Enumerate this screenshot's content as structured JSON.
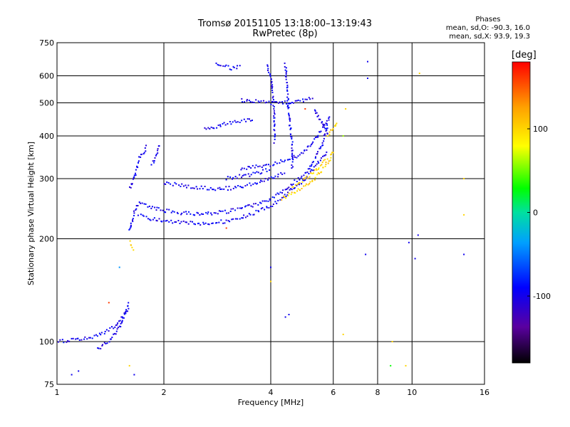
{
  "header": {
    "title_line1": "Tromsø 20151105 13:18:00–13:19:43",
    "title_line2": "RwPretec (8p)"
  },
  "phase_stats": {
    "label": "Phases",
    "line_o": "mean, sd,O: -90.3, 16.0",
    "line_x": "mean, sd,X:  93.9, 19.3"
  },
  "colorbar": {
    "unit": "[deg]",
    "ticks": [
      {
        "value": 100,
        "label": "100"
      },
      {
        "value": 0,
        "label": "0"
      },
      {
        "value": -100,
        "label": "-100"
      }
    ],
    "range": [
      -180,
      180
    ]
  },
  "chart_data": {
    "type": "scatter",
    "xlabel": "Frequency [MHz]",
    "ylabel": "Stationary phase Virtual Height [km]",
    "xscale": "log",
    "yscale": "log",
    "xlim": [
      1,
      16
    ],
    "ylim": [
      75,
      750
    ],
    "grid": true,
    "x_ticks": [
      {
        "value": 1,
        "label": "1"
      },
      {
        "value": 2,
        "label": "2"
      },
      {
        "value": 4,
        "label": "4"
      },
      {
        "value": 6,
        "label": "6"
      },
      {
        "value": 8,
        "label": "8"
      },
      {
        "value": 10,
        "label": "10"
      },
      {
        "value": 16,
        "label": "16"
      }
    ],
    "y_ticks": [
      {
        "value": 75,
        "label": "75"
      },
      {
        "value": 100,
        "label": "100"
      },
      {
        "value": 200,
        "label": "200"
      },
      {
        "value": 300,
        "label": "300"
      },
      {
        "value": 400,
        "label": "400"
      },
      {
        "value": 500,
        "label": "500"
      },
      {
        "value": 600,
        "label": "600"
      },
      {
        "value": 750,
        "label": "750"
      }
    ],
    "traces": [
      {
        "name": "",
        "phase": -100,
        "points": [
          [
            1.6,
            210
          ],
          [
            1.65,
            240
          ],
          [
            1.7,
            255
          ],
          [
            1.8,
            250
          ],
          [
            1.9,
            245
          ],
          [
            2.0,
            242
          ],
          [
            2.2,
            238
          ],
          [
            2.5,
            237
          ],
          [
            2.8,
            238
          ],
          [
            3.0,
            240
          ],
          [
            3.3,
            245
          ],
          [
            3.6,
            252
          ],
          [
            4.0,
            262
          ],
          [
            4.3,
            275
          ],
          [
            4.6,
            290
          ],
          [
            5.0,
            310
          ],
          [
            5.3,
            340
          ],
          [
            5.6,
            380
          ],
          [
            5.8,
            430
          ]
        ]
      },
      {
        "name": "",
        "phase": -100,
        "points": [
          [
            1.7,
            235
          ],
          [
            1.8,
            230
          ],
          [
            1.9,
            228
          ],
          [
            2.0,
            226
          ],
          [
            2.3,
            223
          ],
          [
            2.6,
            222
          ],
          [
            3.0,
            225
          ],
          [
            3.3,
            230
          ],
          [
            3.6,
            238
          ],
          [
            4.0,
            250
          ],
          [
            4.3,
            262
          ],
          [
            4.6,
            280
          ],
          [
            5.0,
            300
          ],
          [
            5.4,
            330
          ],
          [
            5.8,
            360
          ]
        ]
      },
      {
        "name": "",
        "phase": -100,
        "points": [
          [
            1.6,
            280
          ],
          [
            1.65,
            300
          ],
          [
            1.7,
            340
          ],
          [
            1.8,
            375
          ]
        ]
      },
      {
        "name": "",
        "phase": -100,
        "points": [
          [
            1.85,
            330
          ],
          [
            1.9,
            350
          ],
          [
            1.95,
            380
          ]
        ]
      },
      {
        "name": "",
        "phase": -100,
        "points": [
          [
            2.0,
            292
          ],
          [
            2.3,
            285
          ],
          [
            2.8,
            280
          ],
          [
            3.2,
            282
          ],
          [
            3.6,
            290
          ],
          [
            4.0,
            300
          ],
          [
            4.4,
            315
          ]
        ]
      },
      {
        "name": "",
        "phase": -100,
        "points": [
          [
            3.3,
            320
          ],
          [
            3.6,
            325
          ],
          [
            4.0,
            330
          ],
          [
            4.4,
            340
          ],
          [
            4.8,
            350
          ],
          [
            5.2,
            380
          ],
          [
            5.6,
            420
          ],
          [
            5.9,
            460
          ]
        ]
      },
      {
        "name": "",
        "phase": -100,
        "points": [
          [
            3.0,
            300
          ],
          [
            3.3,
            305
          ],
          [
            3.6,
            310
          ],
          [
            4.0,
            320
          ]
        ]
      },
      {
        "name": "",
        "phase": -100,
        "points": [
          [
            3.3,
            510
          ],
          [
            3.6,
            505
          ],
          [
            4.0,
            500
          ],
          [
            4.3,
            500
          ],
          [
            4.8,
            505
          ],
          [
            5.3,
            520
          ]
        ]
      },
      {
        "name": "",
        "phase": -100,
        "points": [
          [
            2.6,
            420
          ],
          [
            2.9,
            430
          ],
          [
            3.2,
            440
          ],
          [
            3.6,
            450
          ]
        ]
      },
      {
        "name": "",
        "phase": -100,
        "points": [
          [
            2.8,
            650
          ],
          [
            3.0,
            640
          ],
          [
            3.1,
            630
          ],
          [
            3.3,
            640
          ]
        ]
      },
      {
        "name": "",
        "phase": -100,
        "points": [
          [
            3.9,
            650
          ],
          [
            4.0,
            600
          ],
          [
            4.05,
            520
          ],
          [
            4.1,
            450
          ],
          [
            4.1,
            380
          ]
        ]
      },
      {
        "name": "",
        "phase": -100,
        "points": [
          [
            4.4,
            650
          ],
          [
            4.45,
            550
          ],
          [
            4.5,
            460
          ],
          [
            4.6,
            380
          ],
          [
            4.6,
            320
          ]
        ]
      },
      {
        "name": "",
        "phase": -100,
        "points": [
          [
            5.3,
            480
          ],
          [
            5.5,
            450
          ],
          [
            5.7,
            420
          ],
          [
            5.8,
            400
          ]
        ]
      },
      {
        "name": "",
        "phase": -100,
        "points": [
          [
            1.0,
            100
          ],
          [
            1.1,
            101
          ],
          [
            1.2,
            102
          ],
          [
            1.3,
            104
          ],
          [
            1.4,
            108
          ],
          [
            1.5,
            115
          ],
          [
            1.6,
            125
          ]
        ]
      },
      {
        "name": "",
        "phase": -100,
        "points": [
          [
            1.3,
            95
          ],
          [
            1.4,
            100
          ],
          [
            1.5,
            110
          ],
          [
            1.55,
            120
          ],
          [
            1.6,
            130
          ]
        ]
      },
      {
        "name": "",
        "phase": 100,
        "points": [
          [
            4.3,
            262
          ],
          [
            4.6,
            272
          ],
          [
            5.0,
            285
          ],
          [
            5.3,
            300
          ],
          [
            5.6,
            320
          ],
          [
            5.9,
            345
          ],
          [
            6.0,
            365
          ]
        ]
      },
      {
        "name": "",
        "phase": 100,
        "points": [
          [
            4.6,
            285
          ],
          [
            5.0,
            300
          ],
          [
            5.4,
            320
          ],
          [
            5.8,
            345
          ]
        ]
      },
      {
        "name": "",
        "phase": 100,
        "points": [
          [
            5.8,
            400
          ],
          [
            6.0,
            420
          ],
          [
            6.2,
            440
          ]
        ]
      },
      {
        "name": "",
        "phase": 100,
        "points": [
          [
            1.6,
            195
          ],
          [
            1.65,
            185
          ]
        ]
      }
    ],
    "scatter_points": [
      {
        "x": 7.5,
        "y": 660,
        "phase": -100
      },
      {
        "x": 7.5,
        "y": 590,
        "phase": -100
      },
      {
        "x": 7.4,
        "y": 180,
        "phase": -100
      },
      {
        "x": 10.4,
        "y": 205,
        "phase": -100
      },
      {
        "x": 10.2,
        "y": 175,
        "phase": -100
      },
      {
        "x": 14.0,
        "y": 180,
        "phase": -100
      },
      {
        "x": 9.8,
        "y": 195,
        "phase": -100
      },
      {
        "x": 4.0,
        "y": 165,
        "phase": -100
      },
      {
        "x": 4.0,
        "y": 150,
        "phase": 100
      },
      {
        "x": 4.4,
        "y": 118,
        "phase": -100
      },
      {
        "x": 4.5,
        "y": 120,
        "phase": -100
      },
      {
        "x": 6.4,
        "y": 105,
        "phase": 100
      },
      {
        "x": 8.8,
        "y": 100,
        "phase": 100
      },
      {
        "x": 8.7,
        "y": 85,
        "phase": 30
      },
      {
        "x": 9.6,
        "y": 85,
        "phase": 100
      },
      {
        "x": 14.0,
        "y": 300,
        "phase": 100
      },
      {
        "x": 14.0,
        "y": 235,
        "phase": 100
      },
      {
        "x": 10.5,
        "y": 610,
        "phase": 100
      },
      {
        "x": 1.5,
        "y": 165,
        "phase": -40
      },
      {
        "x": 1.4,
        "y": 130,
        "phase": 160
      },
      {
        "x": 1.1,
        "y": 80,
        "phase": -100
      },
      {
        "x": 1.15,
        "y": 82,
        "phase": -100
      },
      {
        "x": 1.6,
        "y": 85,
        "phase": 100
      },
      {
        "x": 1.65,
        "y": 80,
        "phase": -100
      },
      {
        "x": 5.0,
        "y": 480,
        "phase": 160
      },
      {
        "x": 6.5,
        "y": 480,
        "phase": 100
      },
      {
        "x": 6.4,
        "y": 400,
        "phase": 60
      },
      {
        "x": 3.0,
        "y": 215,
        "phase": 160
      }
    ]
  }
}
